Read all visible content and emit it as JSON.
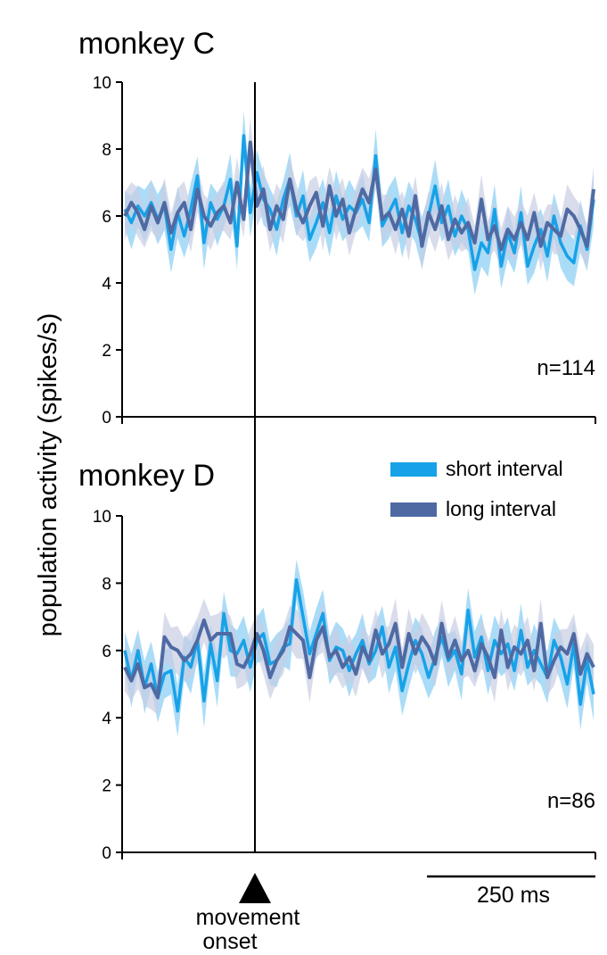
{
  "colors": {
    "short": "#17a2e8",
    "short_band": "#8fd0f4",
    "long": "#4f6aa3",
    "long_band": "#c9cde3"
  },
  "ylabel": "population activity (spikes/s)",
  "marker": {
    "line1": "movement",
    "line2": "onset"
  },
  "scalebar": {
    "label": "250 ms"
  },
  "legend": {
    "short": "short interval",
    "long": "long interval"
  },
  "chart_data": [
    {
      "type": "line",
      "title": "monkey C",
      "n_label": "n=114",
      "ylim": [
        0,
        10
      ],
      "yticks": [
        "0",
        "2",
        "4",
        "6",
        "8",
        "10"
      ],
      "ylabel": "population activity (spikes/s)",
      "series": [
        {
          "name": "short interval",
          "values": [
            6.2,
            5.8,
            6.3,
            6.0,
            6.4,
            5.9,
            6.3,
            5.0,
            6.1,
            5.4,
            6.2,
            7.2,
            5.2,
            6.4,
            5.9,
            6.3,
            7.1,
            5.1,
            8.4,
            6.1,
            7.3,
            6.5,
            6.2,
            5.6,
            6.5,
            7.1,
            6.0,
            6.6,
            5.3,
            5.8,
            6.4,
            5.5,
            6.6,
            5.9,
            6.3,
            6.1,
            6.5,
            5.8,
            7.8,
            5.7,
            6.1,
            6.5,
            5.5,
            6.3,
            5.9,
            5.2,
            6.0,
            6.9,
            5.8,
            6.3,
            5.4,
            6.0,
            5.6,
            4.4,
            5.2,
            4.9,
            6.2,
            4.5,
            5.5,
            4.9,
            6.1,
            4.5,
            5.1,
            5.6,
            4.8,
            6.0,
            5.2,
            4.8,
            4.6,
            5.7,
            5.0,
            6.5
          ]
        },
        {
          "name": "long interval",
          "values": [
            6.0,
            6.4,
            6.1,
            5.6,
            6.3,
            5.8,
            6.4,
            5.5,
            6.1,
            6.4,
            5.6,
            6.8,
            6.0,
            5.7,
            6.1,
            6.3,
            5.8,
            7.0,
            5.9,
            8.2,
            6.3,
            6.8,
            5.6,
            6.3,
            5.9,
            7.1,
            6.2,
            5.8,
            6.3,
            6.7,
            5.7,
            6.9,
            6.0,
            6.5,
            5.5,
            6.2,
            6.8,
            6.4,
            7.4,
            5.9,
            6.1,
            5.6,
            6.2,
            5.4,
            6.6,
            5.1,
            6.1,
            5.6,
            6.3,
            5.3,
            5.9,
            5.5,
            5.8,
            5.2,
            6.5,
            5.3,
            5.7,
            5.0,
            5.6,
            5.3,
            5.8,
            5.3,
            6.1,
            5.1,
            5.8,
            5.6,
            5.4,
            6.2,
            6.0,
            5.6,
            5.1,
            6.8
          ]
        }
      ]
    },
    {
      "type": "line",
      "title": "monkey D",
      "n_label": "n=86",
      "ylim": [
        0,
        10
      ],
      "yticks": [
        "0",
        "2",
        "4",
        "6",
        "8",
        "10"
      ],
      "ylabel": "population activity (spikes/s)",
      "series": [
        {
          "name": "short interval",
          "values": [
            6.0,
            5.1,
            6.0,
            4.9,
            5.6,
            4.6,
            5.3,
            5.4,
            4.2,
            5.8,
            5.5,
            6.3,
            4.5,
            6.2,
            5.1,
            7.1,
            6.0,
            5.9,
            6.3,
            5.5,
            6.3,
            6.5,
            5.6,
            5.7,
            6.1,
            6.2,
            8.1,
            7.0,
            5.9,
            6.5,
            7.1,
            5.7,
            6.1,
            6.0,
            5.4,
            5.9,
            6.3,
            5.6,
            6.0,
            6.7,
            5.5,
            6.1,
            4.8,
            5.6,
            6.3,
            5.9,
            5.2,
            5.8,
            6.4,
            5.7,
            6.0,
            5.3,
            7.2,
            5.8,
            6.4,
            5.4,
            6.3,
            5.9,
            6.2,
            5.4,
            6.6,
            5.5,
            6.0,
            5.6,
            5.2,
            6.3,
            5.8,
            5.0,
            6.2,
            4.4,
            5.7,
            4.7
          ]
        },
        {
          "name": "long interval",
          "values": [
            5.5,
            5.1,
            5.6,
            4.9,
            5.0,
            4.6,
            6.4,
            6.1,
            6.0,
            5.7,
            5.9,
            6.3,
            6.9,
            6.3,
            6.5,
            6.5,
            6.5,
            5.6,
            5.5,
            5.9,
            6.5,
            6.0,
            5.2,
            5.7,
            6.0,
            6.7,
            6.5,
            6.3,
            5.2,
            6.3,
            6.7,
            5.8,
            6.0,
            5.5,
            5.8,
            5.3,
            6.1,
            5.7,
            6.6,
            5.9,
            6.2,
            6.8,
            5.5,
            6.5,
            5.9,
            6.4,
            6.1,
            5.6,
            6.8,
            5.8,
            6.3,
            5.7,
            6.0,
            5.4,
            6.2,
            5.8,
            5.2,
            6.6,
            5.5,
            6.1,
            5.9,
            6.3,
            5.4,
            6.8,
            5.2,
            5.7,
            6.1,
            5.9,
            6.5,
            5.3,
            5.9,
            5.5
          ]
        }
      ]
    }
  ]
}
